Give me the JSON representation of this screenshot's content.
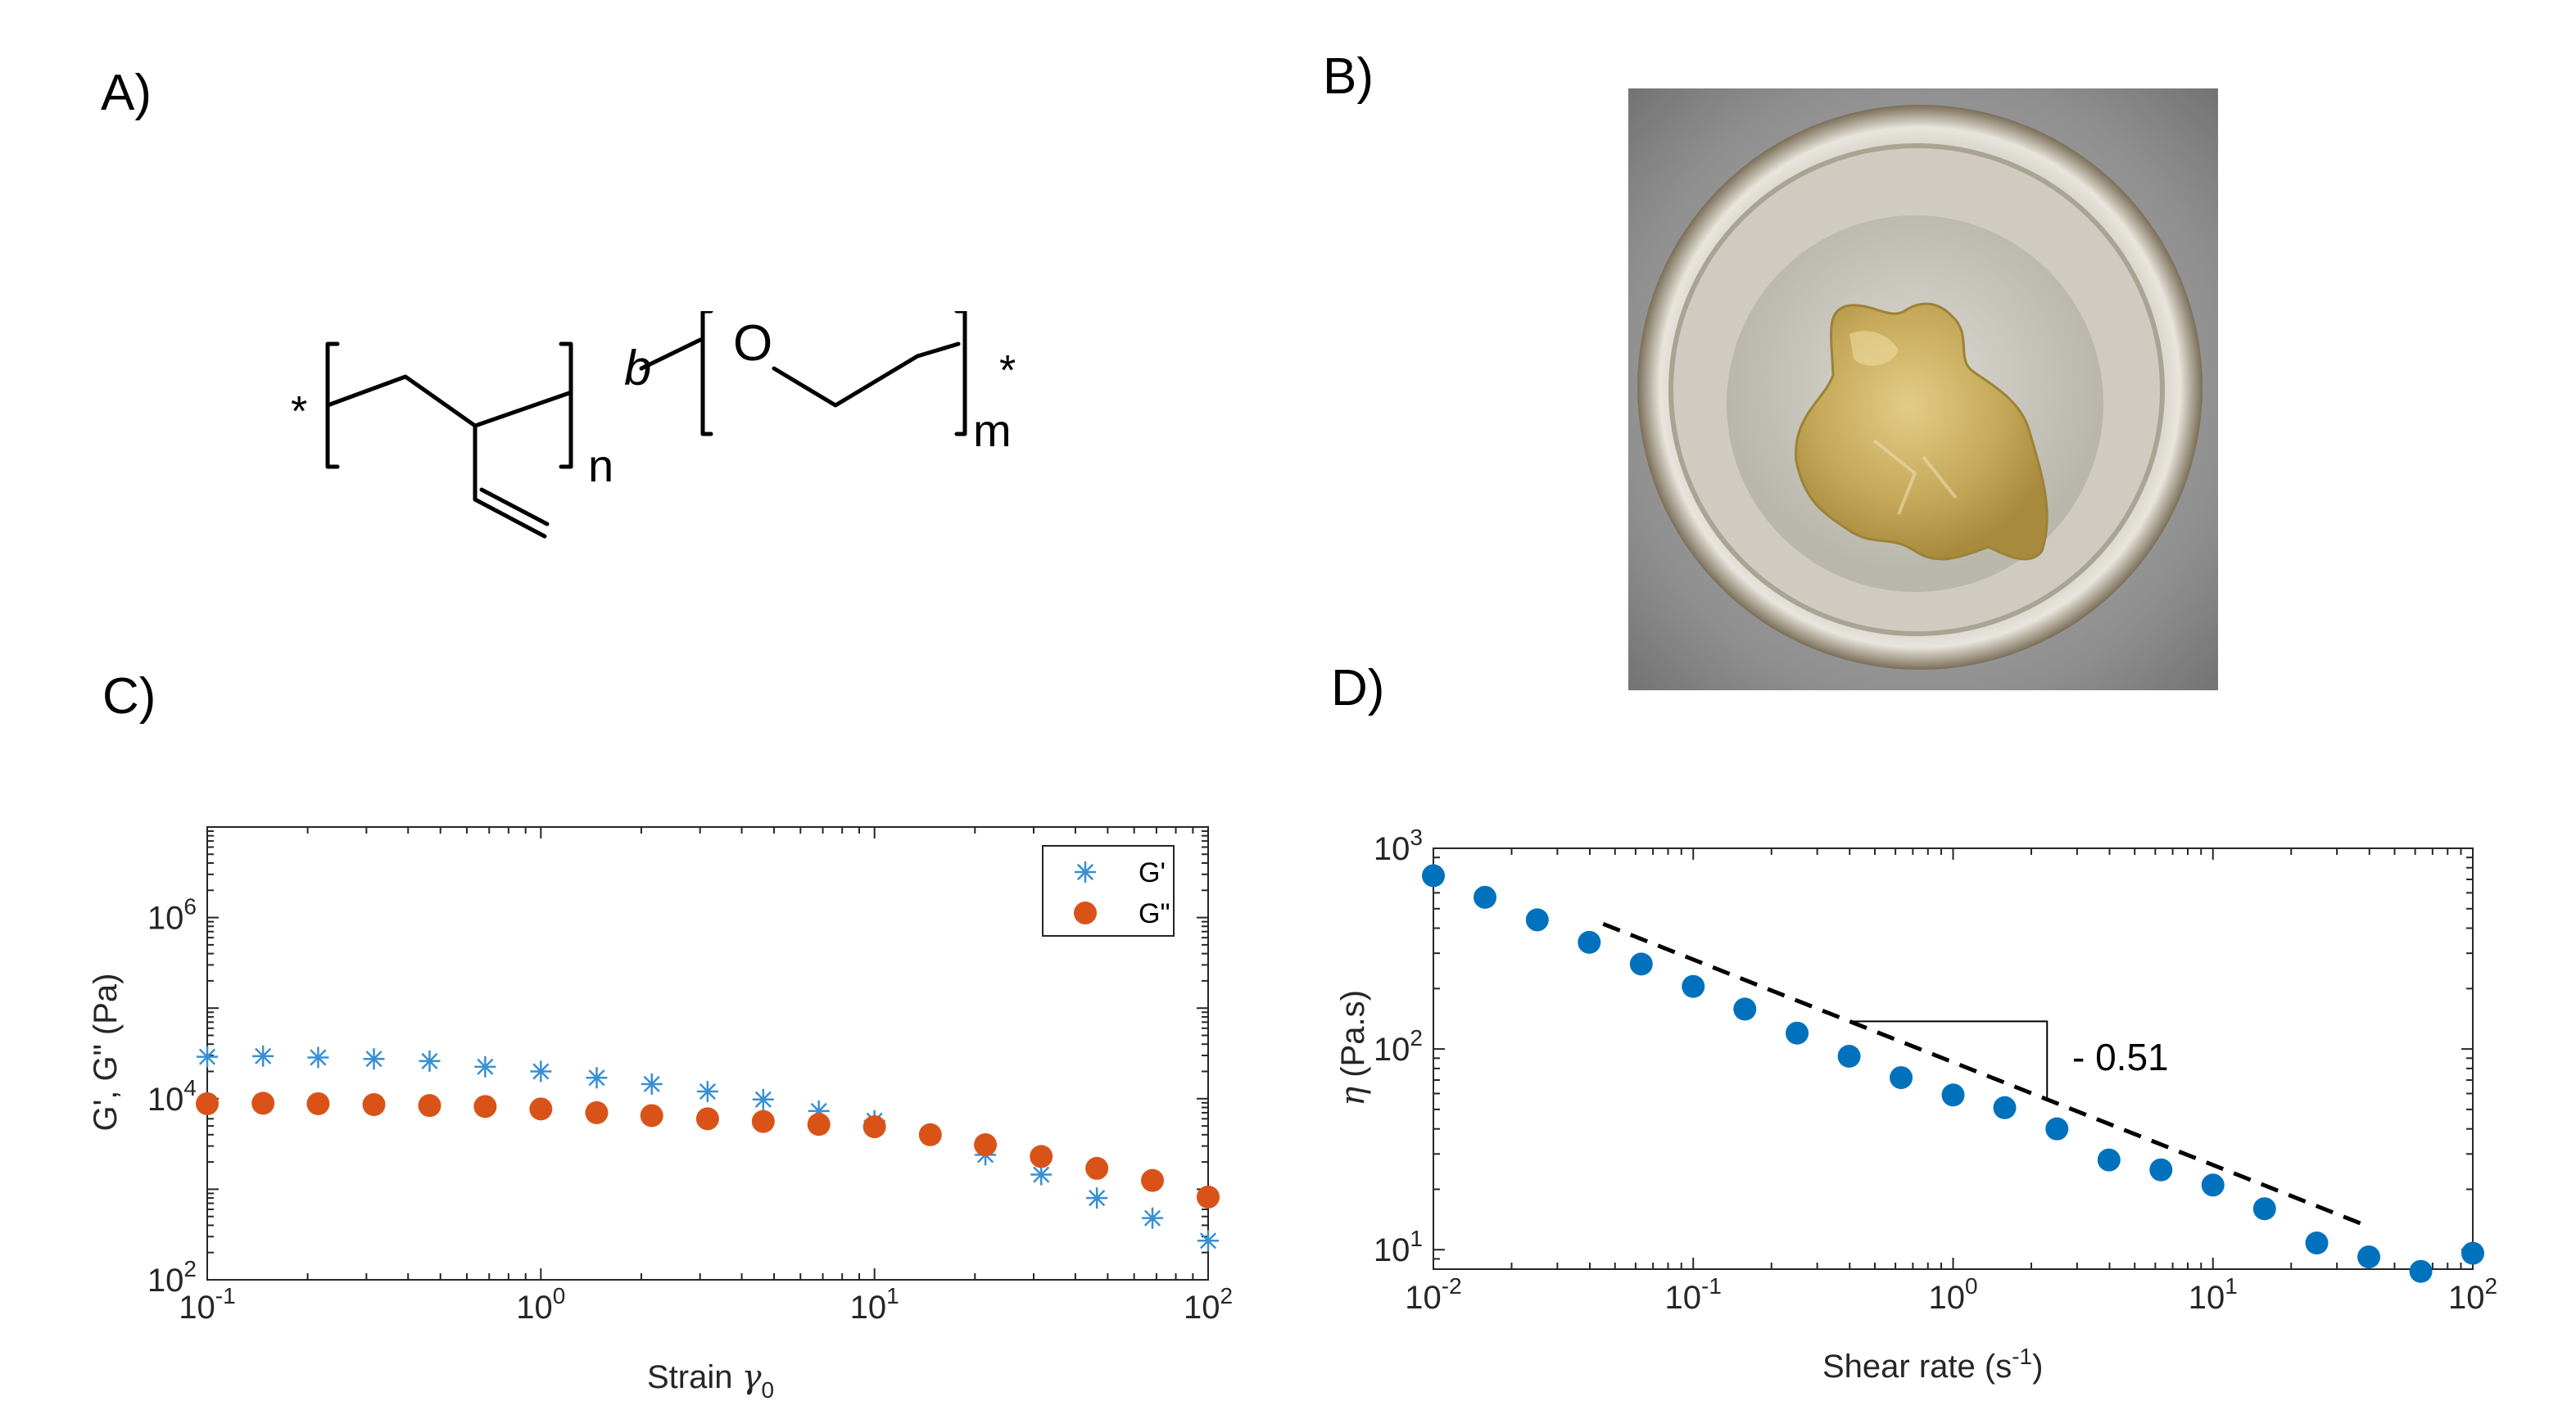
{
  "panels": {
    "a": "A)",
    "b": "B)",
    "c": "C)",
    "d": "D)"
  },
  "structure": {
    "star_left": "*",
    "star_right": "*",
    "block_label": "b",
    "oxygen": "O",
    "sub_n": "n",
    "sub_m": "m"
  },
  "colors": {
    "g_prime": "#3a8fd1",
    "g_double_prime": "#d95319",
    "viscosity": "#0072bd"
  },
  "chart_data": [
    {
      "id": "C",
      "type": "scatter",
      "xscale": "log",
      "yscale": "log",
      "xlim": [
        0.1,
        100
      ],
      "ylim": [
        100,
        10000000
      ],
      "xticks": [
        {
          "base": "10",
          "exp": "-1"
        },
        {
          "base": "10",
          "exp": "0"
        },
        {
          "base": "10",
          "exp": "1"
        },
        {
          "base": "10",
          "exp": "2"
        }
      ],
      "yticks": [
        {
          "base": "10",
          "exp": "2"
        },
        {
          "base": "10",
          "exp": "4"
        },
        {
          "base": "10",
          "exp": "6"
        }
      ],
      "xlabel": "Strain",
      "xlabel_symbol": "γ",
      "xlabel_sub": "0",
      "ylabel": "G', G\" (Pa)",
      "legend_position": "top-right",
      "series": [
        {
          "name": "G'",
          "marker": "asterisk",
          "x": [
            0.1,
            0.147,
            0.215,
            0.316,
            0.464,
            0.681,
            1.0,
            1.47,
            2.15,
            3.16,
            4.64,
            6.81,
            10.0,
            21.5,
            31.6,
            46.4,
            68.1,
            100
          ],
          "y": [
            29000,
            29500,
            28500,
            27500,
            26000,
            22500,
            20000,
            17000,
            14500,
            12000,
            9800,
            7300,
            5700,
            2400,
            1450,
            800,
            480,
            270
          ]
        },
        {
          "name": "G\"",
          "marker": "circle",
          "x": [
            0.1,
            0.147,
            0.215,
            0.316,
            0.464,
            0.681,
            1.0,
            1.47,
            2.15,
            3.16,
            4.64,
            6.81,
            10.0,
            14.7,
            21.5,
            31.6,
            46.4,
            68.1,
            100
          ],
          "y": [
            8800,
            8900,
            8800,
            8600,
            8400,
            8200,
            7700,
            7000,
            6500,
            6000,
            5600,
            5200,
            4900,
            4000,
            3100,
            2300,
            1700,
            1250,
            820
          ]
        }
      ]
    },
    {
      "id": "D",
      "type": "scatter",
      "xscale": "log",
      "yscale": "log",
      "xlim": [
        0.01,
        100
      ],
      "ylim": [
        8,
        1000
      ],
      "xticks": [
        {
          "base": "10",
          "exp": "-2"
        },
        {
          "base": "10",
          "exp": "-1"
        },
        {
          "base": "10",
          "exp": "0"
        },
        {
          "base": "10",
          "exp": "1"
        },
        {
          "base": "10",
          "exp": "2"
        }
      ],
      "yticks": [
        {
          "base": "10",
          "exp": "1"
        },
        {
          "base": "10",
          "exp": "2"
        },
        {
          "base": "10",
          "exp": "3"
        }
      ],
      "xlabel": "Shear rate (s",
      "xlabel_exp": "-1",
      "xlabel_end": ")",
      "ylabel_symbol": "η",
      "ylabel": " (Pa.s)",
      "annotation": "- 0.51",
      "slope": -0.51,
      "series": [
        {
          "marker": "circle",
          "x": [
            0.01,
            0.0158,
            0.0251,
            0.0398,
            0.0631,
            0.1,
            0.158,
            0.251,
            0.398,
            0.631,
            1.0,
            1.58,
            2.51,
            3.98,
            6.31,
            10.0,
            15.8,
            25.1,
            39.8,
            63.1,
            100
          ],
          "y": [
            730,
            570,
            440,
            340,
            265,
            205,
            158,
            120,
            92,
            72,
            59,
            51,
            40,
            28,
            25,
            21,
            16,
            10.8,
            9.2,
            7.8,
            9.6
          ]
        }
      ],
      "fit_line": {
        "x": [
          0.045,
          40
        ],
        "y": [
          420,
          13
        ]
      }
    }
  ]
}
